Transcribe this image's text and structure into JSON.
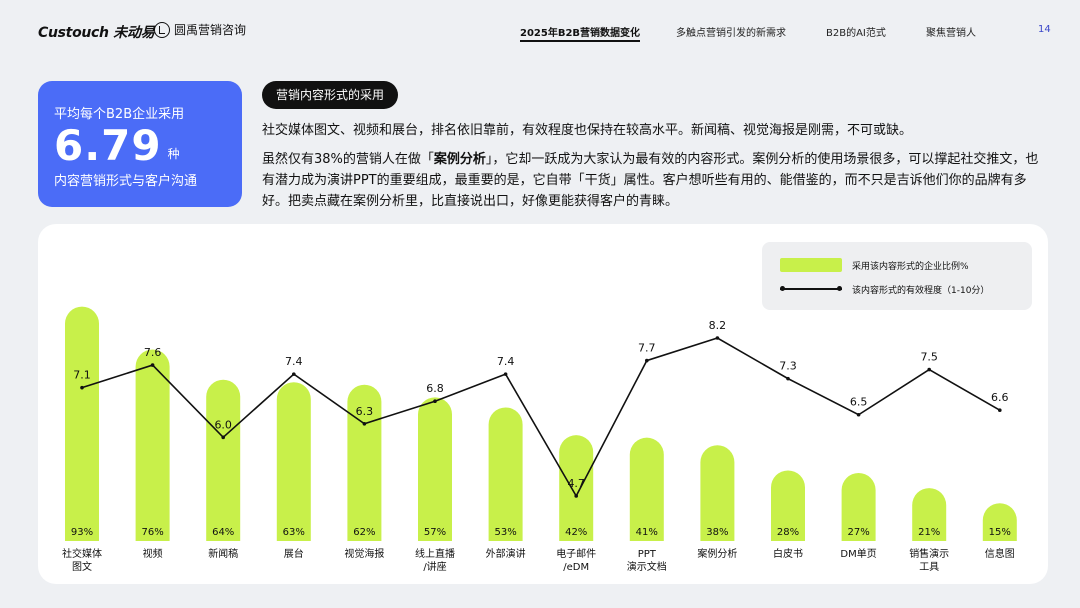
{
  "header": {
    "logo_left": "Custouch 未动易",
    "logo_right": "圆禹营销咨询",
    "nav": [
      {
        "label": "2025年B2B营销数据变化",
        "active": true
      },
      {
        "label": "多触点营销引发的新需求",
        "active": false
      },
      {
        "label": "B2B的AI范式",
        "active": false
      },
      {
        "label": "聚焦营销人",
        "active": false
      }
    ],
    "page_number": "14"
  },
  "stat_card": {
    "line1": "平均每个B2B企业采用",
    "value": "6.79",
    "unit": "种",
    "line3": "内容营销形式与客户沟通"
  },
  "section": {
    "tag": "营销内容形式的采用",
    "para1": "社交媒体图文、视频和展台，排名依旧靠前，有效程度也保持在较高水平。新闻稿、视觉海报是刚需，不可或缺。",
    "para2_pre": "虽然仅有38%的营销人在做「",
    "para2_highlight": "案例分析",
    "para2_post": "」，它却一跃成为大家认为最有效的内容形式。案例分析的使用场景很多，可以撑起社交推文，也有潜力成为演讲PPT的重要组成，最重要的是，它自带「干货」属性。客户想听些有用的、能借鉴的，而不只是吉诉他们你的品牌有多好。把卖点藏在案例分析里，比直接说出口，好像更能获得客户的青睐。"
  },
  "colors": {
    "bar": "#c8f04a",
    "line": "#111111",
    "card": "#4b6cf7"
  },
  "chart_data": {
    "type": "bar",
    "title": "",
    "legend": {
      "placement": "top-right",
      "bar_label": "采用该内容形式的企业比例%",
      "line_label": "该内容形式的有效程度（1-10分）"
    },
    "categories": [
      [
        "社交媒体",
        "图文"
      ],
      [
        "视频"
      ],
      [
        "新闻稿"
      ],
      [
        "展台"
      ],
      [
        "视觉海报"
      ],
      [
        "线上直播",
        "/讲座"
      ],
      [
        "外部演讲"
      ],
      [
        "电子邮件",
        "/eDM"
      ],
      [
        "PPT",
        "演示文档"
      ],
      [
        "案例分析"
      ],
      [
        "白皮书"
      ],
      [
        "DM单页"
      ],
      [
        "销售演示",
        "工具"
      ],
      [
        "信息图"
      ]
    ],
    "series": [
      {
        "name": "采用该内容形式的企业比例%",
        "type": "bar",
        "values": [
          93,
          76,
          64,
          63,
          62,
          57,
          53,
          42,
          41,
          38,
          28,
          27,
          21,
          15
        ],
        "labels": [
          "93%",
          "76%",
          "64%",
          "63%",
          "62%",
          "57%",
          "53%",
          "42%",
          "41%",
          "38%",
          "28%",
          "27%",
          "21%",
          "15%"
        ]
      },
      {
        "name": "该内容形式的有效程度（1-10分）",
        "type": "line",
        "values": [
          7.1,
          7.6,
          6.0,
          7.4,
          6.3,
          6.8,
          7.4,
          4.7,
          7.7,
          8.2,
          7.3,
          6.5,
          7.5,
          6.6
        ],
        "labels": [
          "7.1",
          "7.6",
          "6.0",
          "7.4",
          "6.3",
          "6.8",
          "7.4",
          "4.7",
          "7.7",
          "8.2",
          "7.3",
          "6.5",
          "7.5",
          "6.6"
        ]
      }
    ],
    "bar_range": [
      0,
      100
    ],
    "line_range": [
      4.7,
      8.2
    ],
    "grid": false
  }
}
